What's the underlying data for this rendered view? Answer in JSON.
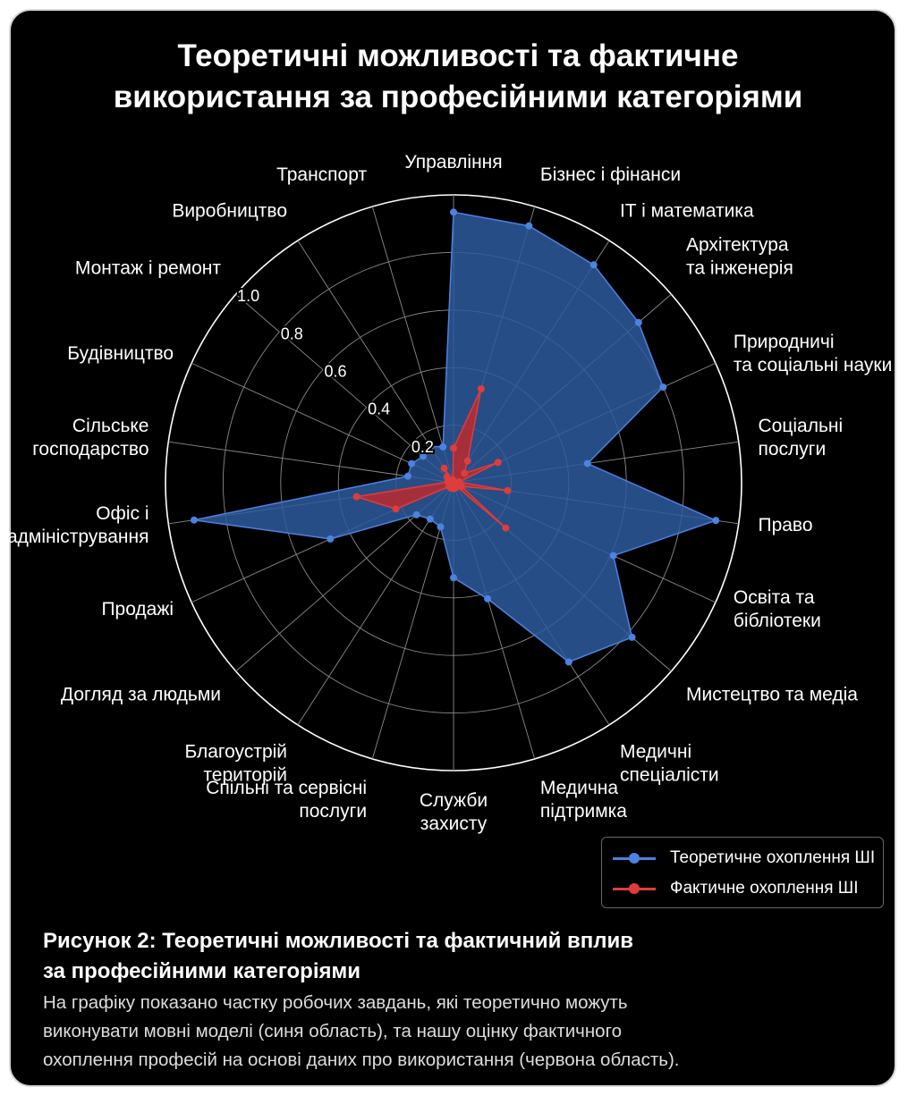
{
  "title": {
    "line1": "Теоретичні можливості та фактичне",
    "line2": "використання за професійними категоріями"
  },
  "chart_data": {
    "type": "radar",
    "title": "Теоретичні можливості та фактичне використання за професійними категоріями",
    "categories": [
      [
        "Управління"
      ],
      [
        "Бізнес і фінанси"
      ],
      [
        "IT і математика"
      ],
      [
        "Архітектура",
        "та інженерія"
      ],
      [
        "Природничі",
        "та соціальні науки"
      ],
      [
        "Соціальні",
        "послуги"
      ],
      [
        "Право"
      ],
      [
        "Освіта та",
        "бібліотеки"
      ],
      [
        "Мистецтво та медіа"
      ],
      [
        "Медичні",
        "спеціалісти"
      ],
      [
        "Медична",
        "підтримка"
      ],
      [
        "Служби",
        "захисту"
      ],
      [
        "Спільні та сервісні",
        "послуги"
      ],
      [
        "Благоустрій",
        "територій"
      ],
      [
        "Догляд за людьми"
      ],
      [
        "Продажі"
      ],
      [
        "Офіс і",
        "адміністрування"
      ],
      [
        "Сільське",
        "господарство"
      ],
      [
        "Будівництво"
      ],
      [
        "Монтаж і ремонт"
      ],
      [
        "Виробництво"
      ],
      [
        "Транспорт"
      ]
    ],
    "rlim": [
      0,
      1.0
    ],
    "ticks": [
      "0.2",
      "0.4",
      "0.6",
      "0.8",
      "1.0"
    ],
    "tick_values": [
      0.2,
      0.4,
      0.6,
      0.8,
      1.0
    ],
    "series": [
      {
        "name": "Теоретичне охоплення ШІ",
        "color": "#4c82e0",
        "values": [
          0.94,
          0.93,
          0.9,
          0.85,
          0.8,
          0.47,
          0.92,
          0.61,
          0.82,
          0.74,
          0.42,
          0.33,
          0.16,
          0.15,
          0.17,
          0.47,
          0.91,
          0.16,
          0.16,
          0.14,
          0.15,
          0.13
        ]
      },
      {
        "name": "Фактичне охоплення ШІ",
        "color": "#e03c3c",
        "values": [
          0.12,
          0.34,
          0.09,
          0.05,
          0.17,
          0.02,
          0.19,
          0.03,
          0.24,
          0.01,
          0.02,
          0.02,
          0.02,
          0.02,
          0.02,
          0.22,
          0.34,
          0.02,
          0.02,
          0.03,
          0.06,
          0.01
        ]
      }
    ],
    "legend_position": "bottom-right",
    "grid": true
  },
  "legend": {
    "theoretical": "Теоретичне охоплення ШІ",
    "actual": "Фактичне охоплення ШІ"
  },
  "caption": {
    "title_line1": "Рисунок 2: Теоретичні можливості та фактичний вплив",
    "title_line2": "за професійними категоріями",
    "text_line1": "На графіку показано частку робочих завдань, які теоретично можуть",
    "text_line2": "виконувати мовні моделі (синя область), та нашу оцінку фактичного",
    "text_line3": "охоплення професій на основі даних про використання (червона область)."
  },
  "colors": {
    "background": "#000000",
    "grid": "#8a8a8a",
    "theoretical_fill": "#2e5a9e",
    "actual_fill": "#c42828"
  }
}
